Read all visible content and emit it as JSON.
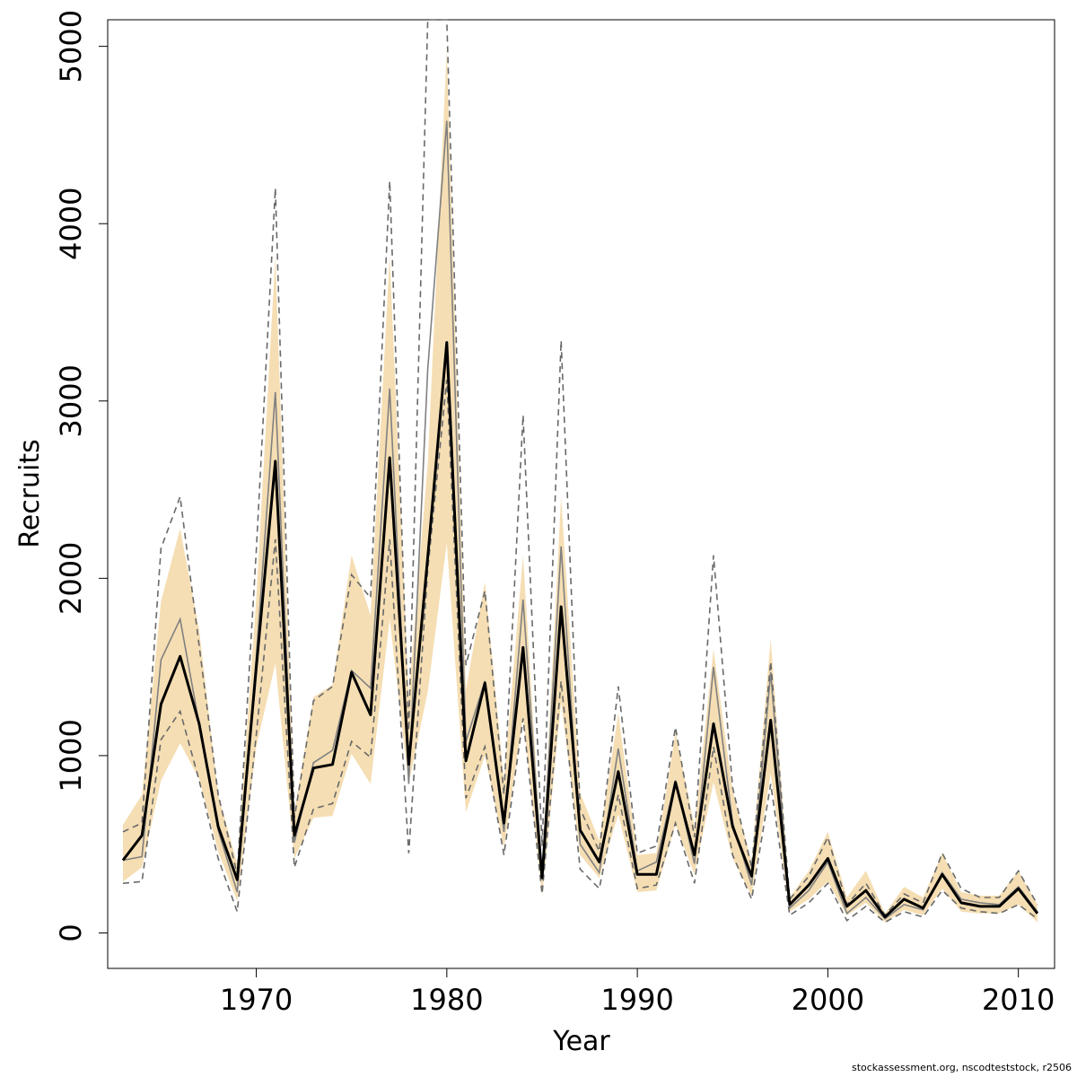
{
  "chart_data": {
    "type": "line",
    "title": "",
    "xlabel": "Year",
    "ylabel": "Recruits",
    "xlim": [
      1962.2,
      2011.9
    ],
    "ylim": [
      -200,
      5150
    ],
    "x_ticks": [
      1970,
      1980,
      1990,
      2000,
      2010
    ],
    "y_ticks": [
      0,
      1000,
      2000,
      3000,
      4000,
      5000
    ],
    "grid": false,
    "legend": "none",
    "years": [
      1963,
      1964,
      1965,
      1966,
      1967,
      1968,
      1969,
      1970,
      1971,
      1972,
      1973,
      1974,
      1975,
      1976,
      1977,
      1978,
      1979,
      1980,
      1981,
      1982,
      1983,
      1984,
      1985,
      1986,
      1987,
      1988,
      1989,
      1990,
      1991,
      1992,
      1993,
      1994,
      1995,
      1996,
      1997,
      1998,
      1999,
      2000,
      2001,
      2002,
      2003,
      2004,
      2005,
      2006,
      2007,
      2008,
      2009,
      2010,
      2011
    ],
    "series": [
      {
        "role": "ci_band",
        "color": "#F5DEB3",
        "lower": [
          290,
          370,
          860,
          1070,
          870,
          460,
          180,
          1050,
          1520,
          420,
          650,
          660,
          1010,
          840,
          1770,
          840,
          1360,
          2200,
          680,
          1000,
          480,
          1220,
          210,
          1300,
          440,
          310,
          670,
          230,
          240,
          610,
          330,
          850,
          420,
          210,
          900,
          120,
          190,
          290,
          100,
          170,
          60,
          130,
          100,
          250,
          120,
          110,
          110,
          160,
          60
        ],
        "upper": [
          610,
          780,
          1870,
          2280,
          1710,
          780,
          390,
          1890,
          3820,
          680,
          1330,
          1400,
          2130,
          1790,
          3820,
          1330,
          2650,
          4980,
          1370,
          1980,
          860,
          2130,
          390,
          2460,
          790,
          520,
          1240,
          440,
          450,
          1130,
          600,
          1600,
          800,
          400,
          1660,
          200,
          350,
          570,
          200,
          350,
          110,
          260,
          200,
          450,
          230,
          210,
          210,
          350,
          160
        ]
      },
      {
        "role": "point",
        "color": "#000000",
        "values": [
          410,
          550,
          1290,
          1560,
          1180,
          600,
          300,
          1500,
          2660,
          550,
          930,
          950,
          1470,
          1230,
          2680,
          950,
          2120,
          3330,
          970,
          1410,
          620,
          1610,
          310,
          1840,
          580,
          400,
          910,
          330,
          330,
          850,
          440,
          1180,
          600,
          320,
          1200,
          160,
          270,
          420,
          150,
          240,
          90,
          190,
          140,
          330,
          170,
          150,
          150,
          250,
          110
        ]
      },
      {
        "role": "alt_estimate",
        "color": "#808080",
        "values": [
          410,
          430,
          1540,
          1770,
          1180,
          580,
          230,
          1560,
          3050,
          510,
          960,
          1030,
          1480,
          1380,
          3070,
          840,
          3180,
          4580,
          1080,
          1420,
          570,
          1880,
          330,
          2180,
          500,
          340,
          1040,
          350,
          400,
          860,
          390,
          1500,
          620,
          270,
          1470,
          140,
          240,
          400,
          110,
          200,
          80,
          160,
          130,
          340,
          190,
          170,
          160,
          260,
          120
        ]
      },
      {
        "role": "alt_ci_upper",
        "color": "#696969",
        "dashed": true,
        "values": [
          570,
          620,
          2170,
          2460,
          1620,
          780,
          330,
          2160,
          4200,
          650,
          1310,
          1390,
          2020,
          1890,
          4240,
          1140,
          5150,
          5150,
          1510,
          1930,
          780,
          2920,
          490,
          3340,
          700,
          460,
          1390,
          450,
          490,
          1160,
          540,
          2130,
          820,
          370,
          1530,
          190,
          320,
          540,
          160,
          280,
          100,
          220,
          170,
          450,
          250,
          200,
          200,
          350,
          160
        ]
      },
      {
        "role": "alt_ci_lower",
        "color": "#696969",
        "dashed": true,
        "values": [
          280,
          290,
          1090,
          1250,
          860,
          420,
          120,
          1120,
          2220,
          370,
          700,
          730,
          1080,
          990,
          2220,
          450,
          2050,
          3120,
          760,
          1050,
          440,
          1210,
          220,
          1420,
          360,
          250,
          780,
          250,
          270,
          620,
          280,
          1050,
          440,
          190,
          840,
          100,
          170,
          280,
          70,
          150,
          60,
          120,
          90,
          240,
          140,
          120,
          110,
          160,
          80
        ]
      }
    ]
  },
  "footnote": "stockassessment.org, nscodteststock, r2506"
}
